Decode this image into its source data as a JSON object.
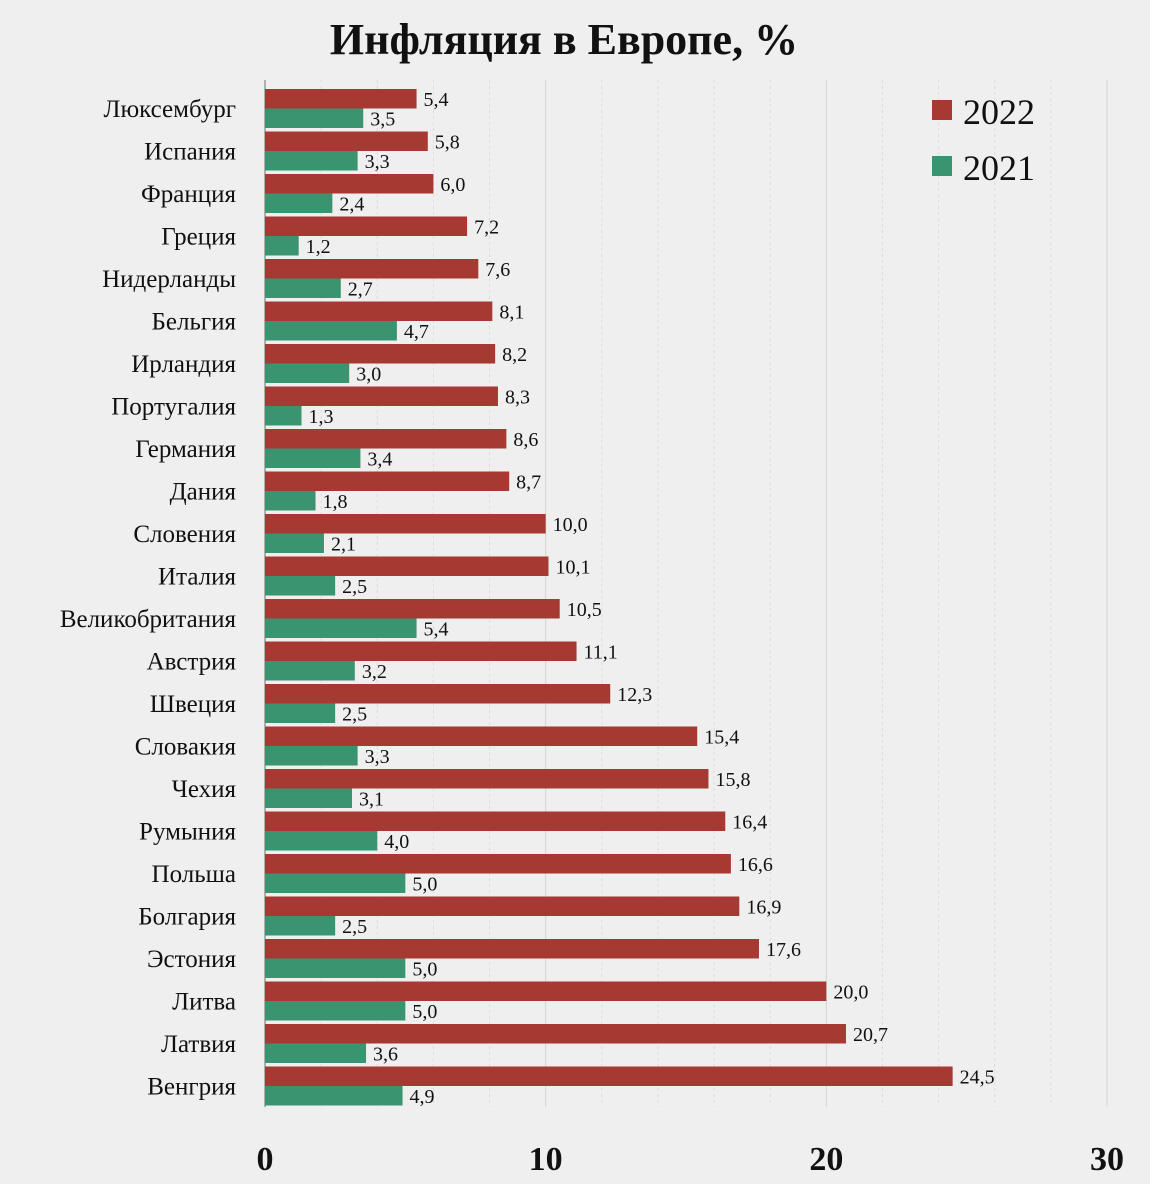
{
  "chart_data": {
    "type": "bar",
    "orientation": "horizontal",
    "title": "Инфляция в Европе, %",
    "xlabel": "",
    "ylabel": "",
    "xlim": [
      0,
      30
    ],
    "x_ticks": [
      "0",
      "10",
      "20",
      "30"
    ],
    "grid": true,
    "legend_position": "top-right",
    "categories": [
      "Люксембург",
      "Испания",
      "Франция",
      "Греция",
      "Нидерланды",
      "Бельгия",
      "Ирландия",
      "Португалия",
      "Германия",
      "Дания",
      "Словения",
      "Италия",
      "Великобритания",
      "Австрия",
      "Швеция",
      "Словакия",
      "Чехия",
      "Румыния",
      "Польша",
      "Болгария",
      "Эстония",
      "Литва",
      "Латвия",
      "Венгрия"
    ],
    "series": [
      {
        "name": "2022",
        "color": "#a63a32",
        "values": [
          5.4,
          5.8,
          6.0,
          7.2,
          7.6,
          8.1,
          8.2,
          8.3,
          8.6,
          8.7,
          10.0,
          10.1,
          10.5,
          11.1,
          12.3,
          15.4,
          15.8,
          16.4,
          16.6,
          16.9,
          17.6,
          20.0,
          20.7,
          24.5
        ],
        "labels": [
          "5,4",
          "5,8",
          "6,0",
          "7,2",
          "7,6",
          "8,1",
          "8,2",
          "8,3",
          "8,6",
          "8,7",
          "10,0",
          "10,1",
          "10,5",
          "11,1",
          "12,3",
          "15,4",
          "15,8",
          "16,4",
          "16,6",
          "16,9",
          "17,6",
          "20,0",
          "20,7",
          "24,5"
        ]
      },
      {
        "name": "2021",
        "color": "#3a9470",
        "values": [
          3.5,
          3.3,
          2.4,
          1.2,
          2.7,
          4.7,
          3.0,
          1.3,
          3.4,
          1.8,
          2.1,
          2.5,
          5.4,
          3.2,
          2.5,
          3.3,
          3.1,
          4.0,
          5.0,
          2.5,
          5.0,
          5.0,
          3.6,
          4.9
        ],
        "labels": [
          "3,5",
          "3,3",
          "2,4",
          "1,2",
          "2,7",
          "4,7",
          "3,0",
          "1,3",
          "3,4",
          "1,8",
          "2,1",
          "2,5",
          "5,4",
          "3,2",
          "2,5",
          "3,3",
          "3,1",
          "4,0",
          "5,0",
          "2,5",
          "5,0",
          "5,0",
          "3,6",
          "4,9"
        ]
      }
    ]
  }
}
